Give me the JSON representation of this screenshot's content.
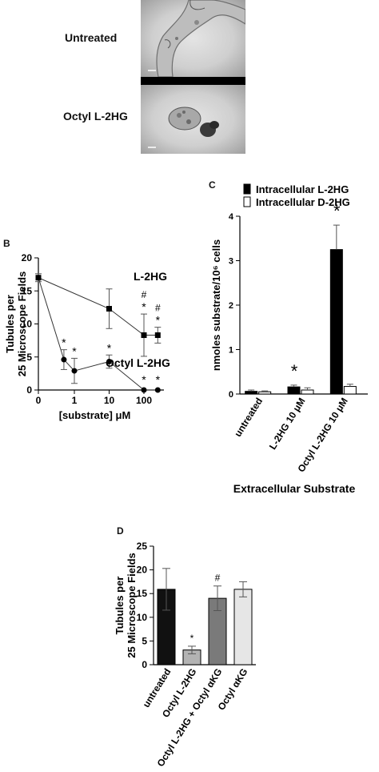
{
  "micrographs": {
    "top_label": "Untreated",
    "bottom_label": "Octyl L-2HG"
  },
  "panel_b": {
    "letter": "B"
  },
  "panel_c": {
    "letter": "C"
  },
  "panel_d": {
    "letter": "D"
  },
  "chart_data": [
    {
      "id": "B",
      "type": "line",
      "xscale": "log",
      "xlabel": "[substrate] μM",
      "ylabel": "Tubules per 25 Microscope Fields",
      "ylim": [
        0,
        20
      ],
      "yticks": [
        0,
        5,
        10,
        15,
        20
      ],
      "xticks": [
        0,
        1,
        10,
        100
      ],
      "series": [
        {
          "name": "L-2HG",
          "marker": "square",
          "points": [
            {
              "x": 0,
              "y": 17,
              "err": 0.6,
              "ann": ""
            },
            {
              "x": 10,
              "y": 12.3,
              "err": 3.0,
              "ann": ""
            },
            {
              "x": 100,
              "y": 8.3,
              "err": 3.2,
              "ann": "#\n*"
            },
            {
              "x": 250,
              "y": 8.3,
              "err": 1.2,
              "ann": "#\n*"
            }
          ]
        },
        {
          "name": "Octyl L-2HG",
          "marker": "circle",
          "points": [
            {
              "x": 0,
              "y": 17,
              "err": 0,
              "ann": ""
            },
            {
              "x": 0.5,
              "y": 4.6,
              "err": 1.5,
              "ann": "*"
            },
            {
              "x": 1,
              "y": 2.9,
              "err": 1.9,
              "ann": "*"
            },
            {
              "x": 10,
              "y": 4.3,
              "err": 1.0,
              "ann": "*"
            },
            {
              "x": 100,
              "y": 0,
              "err": 0,
              "ann": "*"
            },
            {
              "x": 250,
              "y": 0,
              "err": 0,
              "ann": "*"
            }
          ]
        }
      ]
    },
    {
      "id": "C",
      "type": "bar",
      "categories": [
        "untreated",
        "L-2HG 10 μM",
        "Octyl L-2HG 10 μM"
      ],
      "xlabel": "Extracellular Substrate",
      "ylabel": "nmoles substrate/10⁶ cells",
      "ylim": [
        0,
        4
      ],
      "yticks": [
        0,
        1,
        2,
        3,
        4
      ],
      "legend_position": "top",
      "series": [
        {
          "name": "Intracellular  L-2HG",
          "color": "#000000",
          "values": [
            0.06,
            0.16,
            3.25
          ],
          "errors": [
            0.03,
            0.04,
            0.55
          ]
        },
        {
          "name": "Intracellular D-2HG",
          "color": "#ffffff",
          "values": [
            0.05,
            0.09,
            0.17
          ],
          "errors": [
            0.02,
            0.05,
            0.05
          ]
        }
      ],
      "annotations": [
        {
          "category": 1,
          "text": "*"
        },
        {
          "category": 2,
          "text": "*"
        }
      ]
    },
    {
      "id": "D",
      "type": "bar",
      "categories": [
        "untreated",
        "Octyl L-2HG",
        "Octyl L-2HG + Octyl αKG",
        "Octyl αKG"
      ],
      "ylabel": "Tubules per 25 Microscope Fields",
      "ylim": [
        0,
        25
      ],
      "yticks": [
        0,
        5,
        10,
        15,
        20,
        25
      ],
      "values": [
        15.9,
        3.1,
        14.0,
        15.9
      ],
      "errors": [
        4.4,
        0.8,
        2.6,
        1.6
      ],
      "colors": [
        "#111111",
        "#b3b3b3",
        "#7a7a7a",
        "#e6e6e6"
      ],
      "annotations": [
        "",
        "*",
        "#",
        ""
      ]
    }
  ]
}
